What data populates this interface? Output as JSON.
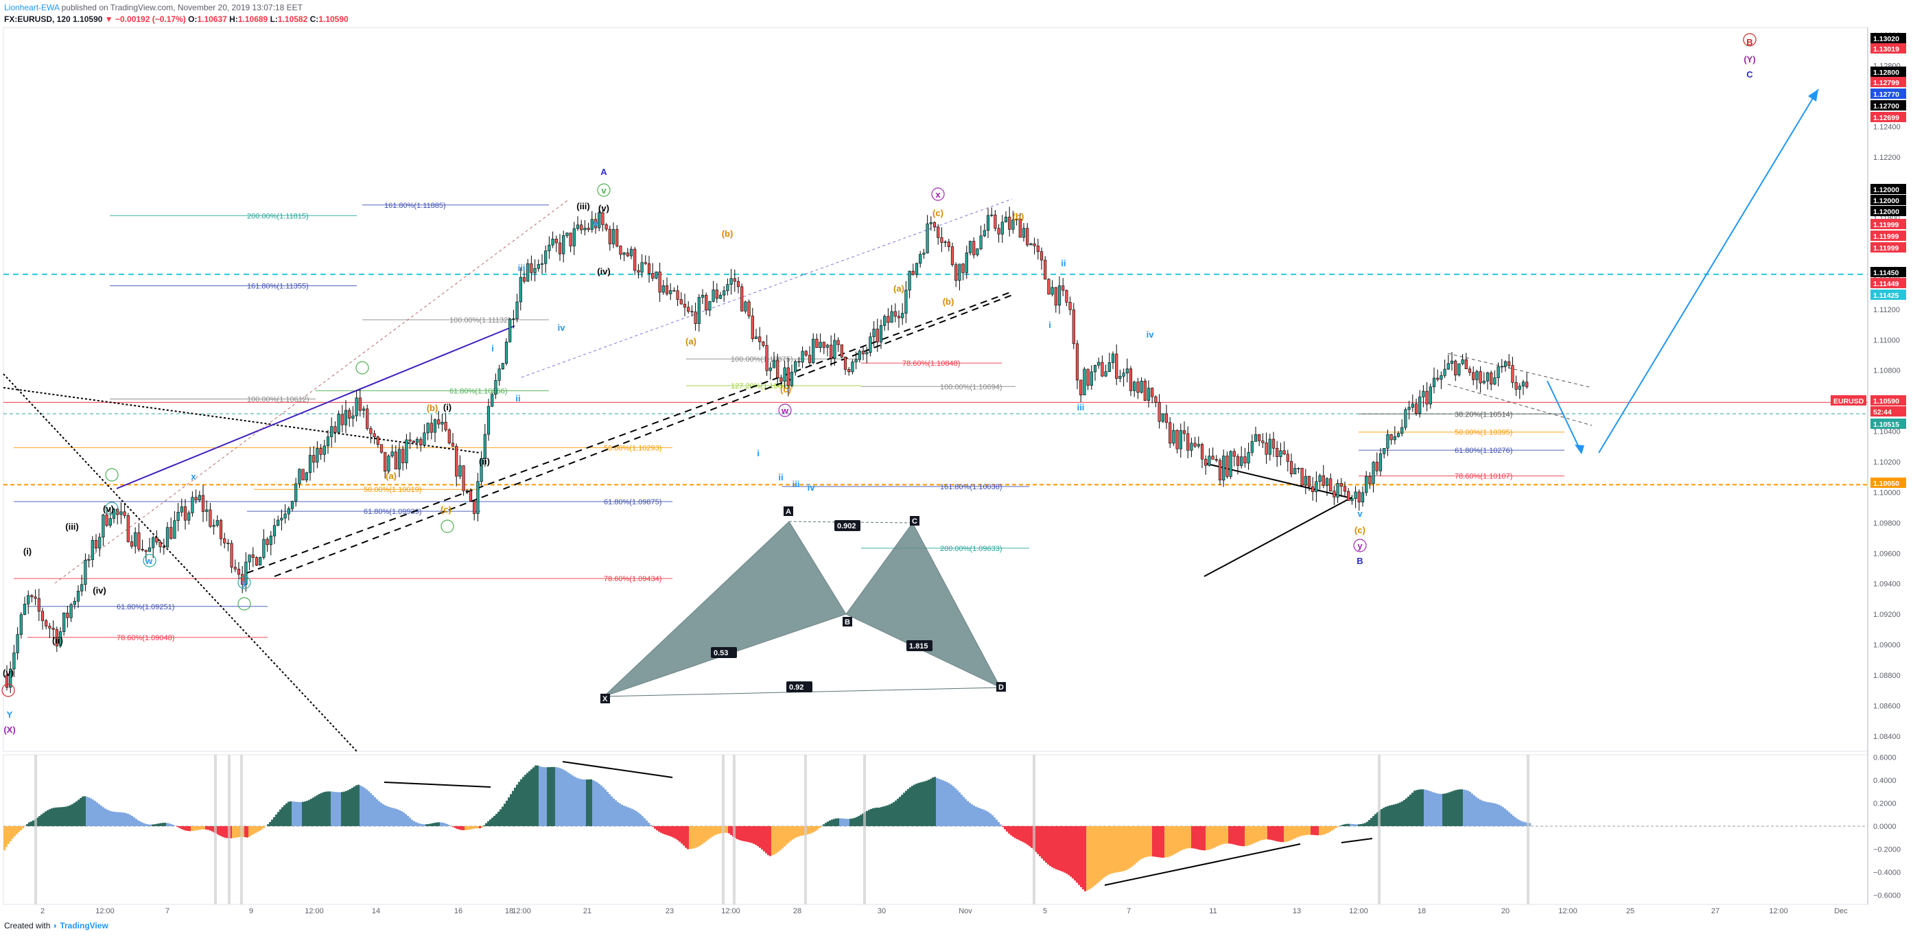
{
  "header": {
    "author": "Lionheart-EWA",
    "published": "published on TradingView.com, November 20, 2019 13:07:18 EET",
    "symbol": "FX:EURUSD, 120",
    "last": "1.10590",
    "change": "−0.00192 (−0.17%)",
    "o_label": "O:",
    "o": "1.10637",
    "h_label": "H:",
    "h": "1.10689",
    "l_label": "L:",
    "l": "1.10582",
    "c_label": "C:",
    "c": "1.10590"
  },
  "footer": {
    "created": "Created with",
    "brand": "TradingView"
  },
  "colors": {
    "up": "#26a69a",
    "down": "#ef5350",
    "bull_hist": "#2e6b5e",
    "bull_hist_light": "#7fa7e0",
    "bear_hist": "#f23645",
    "bear_hist_light": "#ffb74d",
    "cyan_dash": "#26c6da",
    "orange_dash": "#ff9800"
  },
  "chart_data": {
    "type": "candlestick",
    "symbol": "EURUSD",
    "interval": "120",
    "ylim": [
      1.083,
      1.1305
    ],
    "y_ticks": [
      "1.08400",
      "1.08600",
      "1.08800",
      "1.09000",
      "1.09200",
      "1.09400",
      "1.09600",
      "1.09800",
      "1.10000",
      "1.10200",
      "1.10400",
      "1.10600",
      "1.10800",
      "1.11000",
      "1.11200",
      "1.11400",
      "1.11600",
      "1.11800",
      "1.12000",
      "1.12200",
      "1.12400",
      "1.12600",
      "1.12800",
      "1.13000"
    ],
    "x_ticks": [
      "2",
      "12:00",
      "7",
      "9",
      "12:00",
      "14",
      "16",
      "18",
      "12:00",
      "21",
      "23",
      "12:00",
      "28",
      "30",
      "Nov",
      "5",
      "7",
      "11",
      "13",
      "12:00",
      "18",
      "20",
      "12:00",
      "25",
      "27",
      "12:00",
      "Dec"
    ],
    "price_badges": [
      {
        "label": "1.13020",
        "color": "#000000"
      },
      {
        "label": "1.13019",
        "color": "#f23645"
      },
      {
        "label": "1.12800",
        "color": "#000000"
      },
      {
        "label": "1.12799",
        "color": "#f23645"
      },
      {
        "label": "1.12770",
        "color": "#1e53e5"
      },
      {
        "label": "1.12700",
        "color": "#000000"
      },
      {
        "label": "1.12699",
        "color": "#f23645"
      },
      {
        "label": "1.12000",
        "color": "#000000"
      },
      {
        "label": "1.12000",
        "color": "#000000"
      },
      {
        "label": "1.12000",
        "color": "#000000"
      },
      {
        "label": "1.11999",
        "color": "#f23645"
      },
      {
        "label": "1.11999",
        "color": "#f23645"
      },
      {
        "label": "1.11999",
        "color": "#f23645"
      },
      {
        "label": "1.11450",
        "color": "#000000"
      },
      {
        "label": "1.11449",
        "color": "#f23645"
      },
      {
        "label": "1.11425",
        "color": "#26c6da"
      },
      {
        "label": "1.10590",
        "color": "#f23645"
      },
      {
        "label": "52:44",
        "color": "#f23645"
      },
      {
        "label": "1.10515",
        "color": "#26a69a"
      },
      {
        "label": "1.10050",
        "color": "#ff9800"
      }
    ],
    "symbol_badge": "EURUSD",
    "fib_labels": [
      {
        "text": "200.00%(1.11815)",
        "color": "#26a69a"
      },
      {
        "text": "161.80%(1.11355)",
        "color": "#3f51b5"
      },
      {
        "text": "161.80%(1.11885)",
        "color": "#3f51b5"
      },
      {
        "text": "100.00%(1.11132)",
        "color": "#888888"
      },
      {
        "text": "100.00%(1.10612)",
        "color": "#888888"
      },
      {
        "text": "61.80%(1.10666)",
        "color": "#4caf50"
      },
      {
        "text": "50.00%(1.10293)",
        "color": "#ff9800"
      },
      {
        "text": "50.00%(1.10019)",
        "color": "#ff9800"
      },
      {
        "text": "61.80%(1.09875)",
        "color": "#3f51b5"
      },
      {
        "text": "61.80%(1.09939)",
        "color": "#3f51b5"
      },
      {
        "text": "78.60%(1.09434)",
        "color": "#f23645"
      },
      {
        "text": "61.80%(1.09251)",
        "color": "#3f51b5"
      },
      {
        "text": "78.60%(1.09048)",
        "color": "#f23645"
      },
      {
        "text": "100.00%(1.10875)",
        "color": "#888888"
      },
      {
        "text": "78.60%(1.10848)",
        "color": "#f23645"
      },
      {
        "text": "127.20%(1.10699)",
        "color": "#9acd32"
      },
      {
        "text": "100.00%(1.10694)",
        "color": "#888888"
      },
      {
        "text": "161.80%(1.10038)",
        "color": "#3f51b5"
      },
      {
        "text": "200.00%(1.09633)",
        "color": "#26a69a"
      },
      {
        "text": "38.20%(1.10514)",
        "color": "#555555"
      },
      {
        "text": "50.00%(1.10395)",
        "color": "#ff9800"
      },
      {
        "text": "61.80%(1.10276)",
        "color": "#3f51b5"
      },
      {
        "text": "78.60%(1.10107)",
        "color": "#f23645"
      }
    ],
    "wave_labels": [
      "(v)",
      "(i)",
      "(ii)",
      "(iii)",
      "(iv)",
      "(v)",
      "Y",
      "(X)",
      "i",
      "ii",
      "iii",
      "iv",
      "v",
      "w",
      "x",
      "y",
      "(a)",
      "(b)",
      "(c)",
      "(i)",
      "(ii)",
      "i",
      "ii",
      "iii",
      "iv",
      "(iii)",
      "(iv)",
      "(v)",
      "A",
      "v",
      "(a)",
      "(b)",
      "(c)",
      "w",
      "(a)",
      "(b)",
      "(c)",
      "x",
      "(b)",
      "i",
      "ii",
      "iii",
      "iv",
      "v",
      "(c)",
      "y",
      "B",
      "B",
      "(Y)",
      "C"
    ],
    "harmonic": {
      "points": [
        "X",
        "A",
        "B",
        "C",
        "D"
      ],
      "ratios": [
        "0.53",
        "0.902",
        "1.815",
        "0.92"
      ]
    },
    "oscillator_ticks": [
      "0.6000",
      "0.4000",
      "0.2000",
      "0.0000",
      "−0.2000",
      "−0.4000",
      "−0.6000"
    ],
    "oscillator_ylim": [
      -0.68,
      0.62
    ],
    "ohlc": {
      "x": "last",
      "o": 1.10637,
      "h": 1.10689,
      "l": 1.10582,
      "c": 1.1059
    }
  }
}
